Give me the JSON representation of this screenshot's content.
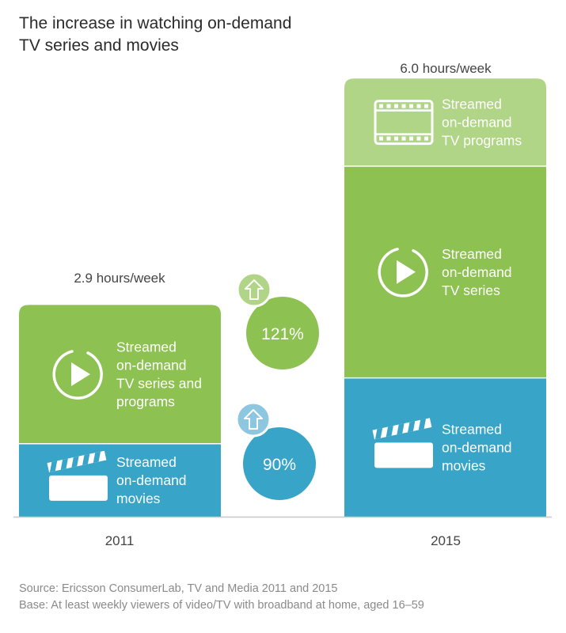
{
  "chart_data": {
    "type": "bar",
    "title": "The increase in watching on-demand TV series and movies",
    "title_lines": [
      "The increase in watching on-demand",
      "TV series and movies"
    ],
    "unit": "hours/week",
    "categories": [
      "2011",
      "2015"
    ],
    "totals": [
      "2.9 hours/week",
      "6.0 hours/week"
    ],
    "total_values": [
      2.9,
      6.0
    ],
    "bars": [
      {
        "category": "2011",
        "segments": [
          {
            "label_lines": [
              "Streamed",
              "on-demand",
              "movies"
            ],
            "value": 1.0,
            "color": "#38a4c8",
            "icon": "clapperboard-icon"
          },
          {
            "label_lines": [
              "Streamed",
              "on-demand",
              "TV series and",
              "programs"
            ],
            "value": 1.9,
            "color": "#8dc151",
            "icon": "play-icon"
          }
        ]
      },
      {
        "category": "2015",
        "segments": [
          {
            "label_lines": [
              "Streamed",
              "on-demand",
              "movies"
            ],
            "value": 1.9,
            "color": "#38a4c8",
            "icon": "clapperboard-icon"
          },
          {
            "label_lines": [
              "Streamed",
              "on-demand",
              "TV series"
            ],
            "value": 2.9,
            "color": "#8dc151",
            "icon": "play-icon"
          },
          {
            "label_lines": [
              "Streamed",
              "on-demand",
              "TV programs"
            ],
            "value": 1.2,
            "color": "#b1d586",
            "icon": "film-strip-icon"
          }
        ]
      }
    ],
    "increases": [
      {
        "label": "121%",
        "color": "#8dc151",
        "arrow_color": "#b1d586",
        "icon": "up-arrow-icon"
      },
      {
        "label": "90%",
        "color": "#38a4c8",
        "arrow_color": "#8cc7df",
        "icon": "up-arrow-icon"
      }
    ],
    "ylim": [
      0,
      6.4
    ]
  },
  "source": {
    "line1": "Source: Ericsson ConsumerLab, TV and Media 2011 and 2015",
    "line2": "Base: At least weekly viewers of video/TV with broadband at home, aged 16–59"
  }
}
